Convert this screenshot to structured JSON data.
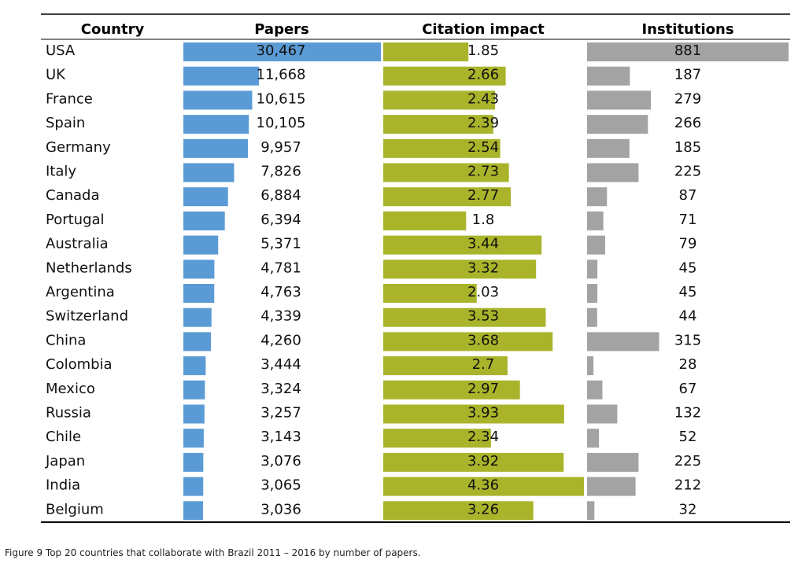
{
  "chart_data": {
    "type": "table",
    "columns": {
      "country": "Country",
      "papers": "Papers",
      "citation": "Citation impact",
      "institutions": "Institutions"
    },
    "colors": {
      "papers": "#5b9bd5",
      "citation": "#a9b42a",
      "institutions": "#a3a3a3"
    },
    "scale_max": {
      "papers": 30467,
      "citation": 4.36,
      "institutions": 881
    },
    "rows": [
      {
        "country": "USA",
        "papers": 30467,
        "papers_label": "30,467",
        "citation": 1.85,
        "citation_label": "1.85",
        "institutions": 881,
        "institutions_label": "881"
      },
      {
        "country": "UK",
        "papers": 11668,
        "papers_label": "11,668",
        "citation": 2.66,
        "citation_label": "2.66",
        "institutions": 187,
        "institutions_label": "187"
      },
      {
        "country": "France",
        "papers": 10615,
        "papers_label": "10,615",
        "citation": 2.43,
        "citation_label": "2.43",
        "institutions": 279,
        "institutions_label": "279"
      },
      {
        "country": "Spain",
        "papers": 10105,
        "papers_label": "10,105",
        "citation": 2.39,
        "citation_label": "2.39",
        "institutions": 266,
        "institutions_label": "266"
      },
      {
        "country": "Germany",
        "papers": 9957,
        "papers_label": "9,957",
        "citation": 2.54,
        "citation_label": "2.54",
        "institutions": 185,
        "institutions_label": "185"
      },
      {
        "country": "Italy",
        "papers": 7826,
        "papers_label": "7,826",
        "citation": 2.73,
        "citation_label": "2.73",
        "institutions": 225,
        "institutions_label": "225"
      },
      {
        "country": "Canada",
        "papers": 6884,
        "papers_label": "6,884",
        "citation": 2.77,
        "citation_label": "2.77",
        "institutions": 87,
        "institutions_label": "87"
      },
      {
        "country": "Portugal",
        "papers": 6394,
        "papers_label": "6,394",
        "citation": 1.8,
        "citation_label": "1.8",
        "institutions": 71,
        "institutions_label": "71"
      },
      {
        "country": "Australia",
        "papers": 5371,
        "papers_label": "5,371",
        "citation": 3.44,
        "citation_label": "3.44",
        "institutions": 79,
        "institutions_label": "79"
      },
      {
        "country": "Netherlands",
        "papers": 4781,
        "papers_label": "4,781",
        "citation": 3.32,
        "citation_label": "3.32",
        "institutions": 45,
        "institutions_label": "45"
      },
      {
        "country": "Argentina",
        "papers": 4763,
        "papers_label": "4,763",
        "citation": 2.03,
        "citation_label": "2.03",
        "institutions": 45,
        "institutions_label": "45"
      },
      {
        "country": "Switzerland",
        "papers": 4339,
        "papers_label": "4,339",
        "citation": 3.53,
        "citation_label": "3.53",
        "institutions": 44,
        "institutions_label": "44"
      },
      {
        "country": "China",
        "papers": 4260,
        "papers_label": "4,260",
        "citation": 3.68,
        "citation_label": "3.68",
        "institutions": 315,
        "institutions_label": "315"
      },
      {
        "country": "Colombia",
        "papers": 3444,
        "papers_label": "3,444",
        "citation": 2.7,
        "citation_label": "2.7",
        "institutions": 28,
        "institutions_label": "28"
      },
      {
        "country": "Mexico",
        "papers": 3324,
        "papers_label": "3,324",
        "citation": 2.97,
        "citation_label": "2.97",
        "institutions": 67,
        "institutions_label": "67"
      },
      {
        "country": "Russia",
        "papers": 3257,
        "papers_label": "3,257",
        "citation": 3.93,
        "citation_label": "3.93",
        "institutions": 132,
        "institutions_label": "132"
      },
      {
        "country": "Chile",
        "papers": 3143,
        "papers_label": "3,143",
        "citation": 2.34,
        "citation_label": "2.34",
        "institutions": 52,
        "institutions_label": "52"
      },
      {
        "country": "Japan",
        "papers": 3076,
        "papers_label": "3,076",
        "citation": 3.92,
        "citation_label": "3.92",
        "institutions": 225,
        "institutions_label": "225"
      },
      {
        "country": "India",
        "papers": 3065,
        "papers_label": "3,065",
        "citation": 4.36,
        "citation_label": "4.36",
        "institutions": 212,
        "institutions_label": "212"
      },
      {
        "country": "Belgium",
        "papers": 3036,
        "papers_label": "3,036",
        "citation": 3.26,
        "citation_label": "3.26",
        "institutions": 32,
        "institutions_label": "32"
      }
    ]
  },
  "caption": "Figure 9 Top 20 countries that collaborate with Brazil 2011 – 2016 by number of papers."
}
